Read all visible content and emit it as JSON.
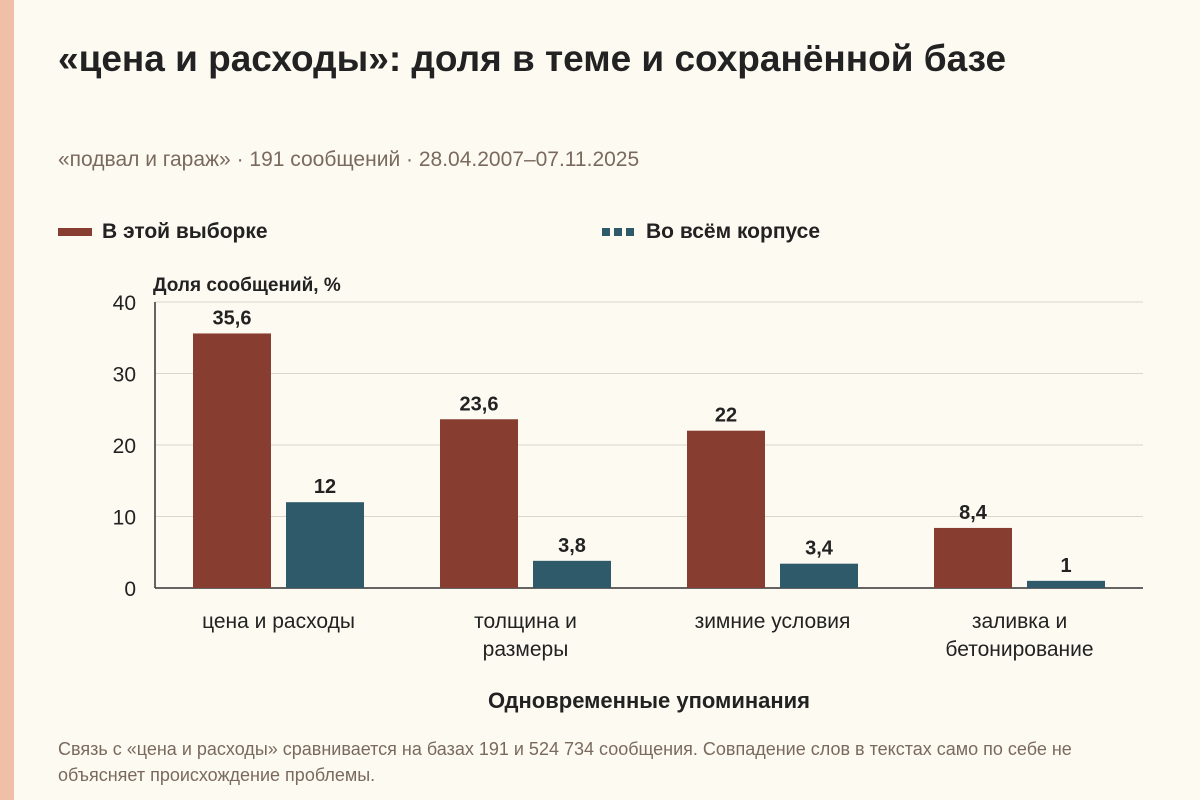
{
  "title": "«цена и расходы»: доля в теме и сохранённой базе",
  "subtitle": "«подвал и гараж» · 191 сообщений · 28.04.2007–07.11.2025",
  "footnote": "Связь с «цена и расходы» сравнивается на базах 191 и 524 734 сообщения. Совпадение слов в текстах само по себе не объясняет происхождение проблемы.",
  "colors": {
    "sample": "#873d30",
    "corpus": "#2e5a6a",
    "accent": "#efc0a6"
  },
  "chart_data": {
    "type": "bar",
    "xlabel": "Одновременные упоминания",
    "ylabel": "Доля сообщений, %",
    "ylim": [
      0,
      40
    ],
    "yticks": [
      "0",
      "10",
      "20",
      "30",
      "40"
    ],
    "grid": true,
    "legend_position": "top",
    "categories": [
      "цена и расходы",
      "толщина и размеры",
      "зимние условия",
      "заливка и бетонирование"
    ],
    "category_lines": [
      [
        "цена и расходы"
      ],
      [
        "толщина и",
        "размеры"
      ],
      [
        "зимние условия"
      ],
      [
        "заливка и",
        "бетонирование"
      ]
    ],
    "series": [
      {
        "name": "В этой выборке",
        "values": [
          35.6,
          23.6,
          22,
          8.4
        ],
        "labels": [
          "35,6",
          "23,6",
          "22",
          "8,4"
        ]
      },
      {
        "name": "Во всём корпусе",
        "values": [
          12,
          3.8,
          3.4,
          1
        ],
        "labels": [
          "12",
          "3,8",
          "3,4",
          "1"
        ]
      }
    ]
  }
}
